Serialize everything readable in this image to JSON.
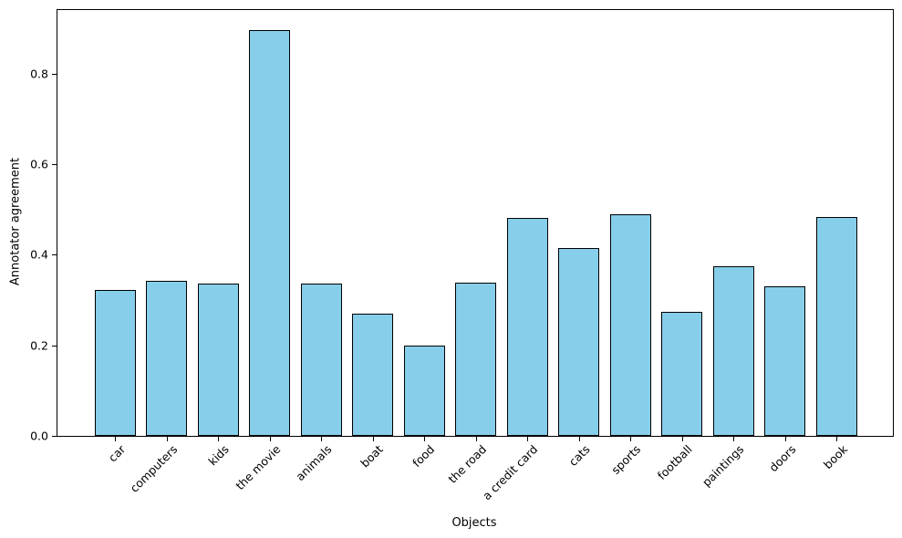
{
  "chart_data": {
    "type": "bar",
    "title": "",
    "xlabel": "Objects",
    "ylabel": "Annotator agreement",
    "categories": [
      "car",
      "computers",
      "kids",
      "the movie",
      "animals",
      "boat",
      "food",
      "the road",
      "a credit card",
      "cats",
      "sports",
      "football",
      "paintings",
      "doors",
      "book"
    ],
    "values": [
      0.322,
      0.343,
      0.336,
      0.895,
      0.336,
      0.27,
      0.2,
      0.338,
      0.482,
      0.415,
      0.49,
      0.274,
      0.374,
      0.33,
      0.484
    ],
    "ylim": [
      0,
      0.94
    ],
    "yticks": [
      0.0,
      0.2,
      0.4,
      0.6,
      0.8
    ],
    "grid": false,
    "legend": "none",
    "bar_color": "#87CEEB",
    "bar_edge_color": "#000000",
    "background_color": "#FFFFFF",
    "text_color": "#000000"
  }
}
